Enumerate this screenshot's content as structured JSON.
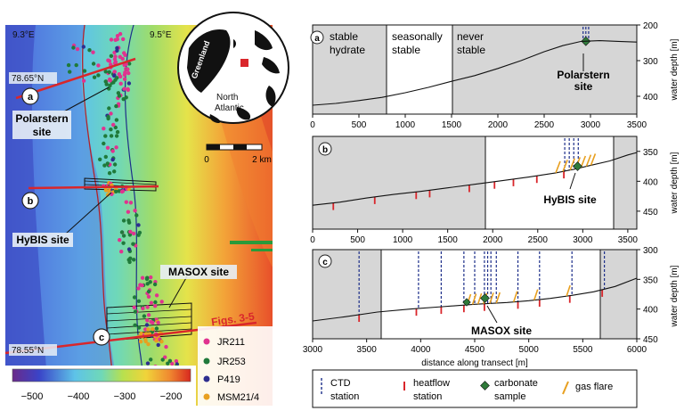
{
  "map": {
    "lon_west": "9.3°E",
    "lon_east": "9.5°E",
    "lat_north": "78.65°N",
    "lat_south": "78.55°N",
    "site_labels": [
      "Polarstern site",
      "HyBIS site",
      "MASOX site"
    ],
    "transect_letters": [
      "a",
      "b",
      "c"
    ],
    "figs_label": "Figs. 3-5",
    "scale_start": "0",
    "scale_end": "2 km",
    "colorbar_ticks": [
      "−500",
      "−400",
      "−300",
      "−200"
    ],
    "cruise_legend": [
      {
        "label": "JR211",
        "color": "#e0338f"
      },
      {
        "label": "JR253",
        "color": "#1f7a3a"
      },
      {
        "label": "P419",
        "color": "#2d2f8f"
      },
      {
        "label": "MSM21/4",
        "color": "#e8a020"
      }
    ],
    "inset": {
      "greenland": "Greenland",
      "north_atlantic_1": "North",
      "north_atlantic_2": "Atlantic"
    }
  },
  "panels": {
    "a": {
      "letter": "a",
      "zones": [
        "stable",
        "hydrate",
        "seasonally",
        "stable",
        "never",
        "stable"
      ],
      "site": "Polarstern",
      "site2": "site",
      "x_ticks": [
        "0",
        "500",
        "1000",
        "1500",
        "2000",
        "2500",
        "3000",
        "3500"
      ],
      "y_ticks": [
        "200",
        "300",
        "400"
      ],
      "y_label": "water depth [m]",
      "profile": [
        [
          0,
          425
        ],
        [
          250,
          420
        ],
        [
          500,
          412
        ],
        [
          750,
          403
        ],
        [
          1000,
          390
        ],
        [
          1250,
          375
        ],
        [
          1500,
          358
        ],
        [
          1750,
          342
        ],
        [
          2000,
          322
        ],
        [
          2250,
          300
        ],
        [
          2500,
          275
        ],
        [
          2700,
          258
        ],
        [
          2900,
          246
        ],
        [
          3100,
          244
        ],
        [
          3300,
          246
        ],
        [
          3500,
          248
        ]
      ],
      "ctd_x": [
        2920,
        2950,
        2980
      ]
    },
    "b": {
      "letter": "b",
      "site": "HyBIS site",
      "x_ticks": [
        "0",
        "500",
        "1000",
        "1500",
        "2000",
        "2500",
        "3000",
        "3500"
      ],
      "y_ticks": [
        "350",
        "400",
        "450"
      ],
      "y_label": "water depth [m]",
      "profile": [
        [
          0,
          440
        ],
        [
          300,
          435
        ],
        [
          600,
          428
        ],
        [
          900,
          422
        ],
        [
          1200,
          417
        ],
        [
          1500,
          411
        ],
        [
          1800,
          405
        ],
        [
          2100,
          399
        ],
        [
          2400,
          393
        ],
        [
          2700,
          386
        ],
        [
          2900,
          380
        ],
        [
          3100,
          373
        ],
        [
          3300,
          366
        ],
        [
          3500,
          356
        ],
        [
          3600,
          352
        ]
      ],
      "heatflow_x": [
        230,
        690,
        1150,
        1300,
        1740,
        2020,
        2230,
        2490,
        2790
      ]
    },
    "c": {
      "letter": "c",
      "site": "MASOX site",
      "x_ticks": [
        "3000",
        "3500",
        "4000",
        "4500",
        "5000",
        "5500",
        "6000"
      ],
      "y_ticks": [
        "300",
        "350",
        "400",
        "450"
      ],
      "y_label": "water depth [m]",
      "x_label": "distance along transect [m]",
      "profile": [
        [
          3000,
          420
        ],
        [
          3300,
          413
        ],
        [
          3600,
          405
        ],
        [
          3900,
          400
        ],
        [
          4200,
          396
        ],
        [
          4500,
          392
        ],
        [
          4800,
          389
        ],
        [
          5000,
          386
        ],
        [
          5200,
          382
        ],
        [
          5400,
          377
        ],
        [
          5600,
          371
        ],
        [
          5800,
          362
        ],
        [
          6000,
          348
        ]
      ],
      "ctd_x": [
        3430,
        3980,
        4190,
        4400,
        4500,
        4590,
        4620,
        4650,
        4700,
        4900,
        5100,
        5400,
        5700
      ]
    }
  },
  "legend": {
    "ctd": "CTD",
    "ctd2": "station",
    "heatflow": "heatflow",
    "heatflow2": "station",
    "carbonate": "carbonate",
    "carbonate2": "sample",
    "gasflare": "gas flare"
  }
}
